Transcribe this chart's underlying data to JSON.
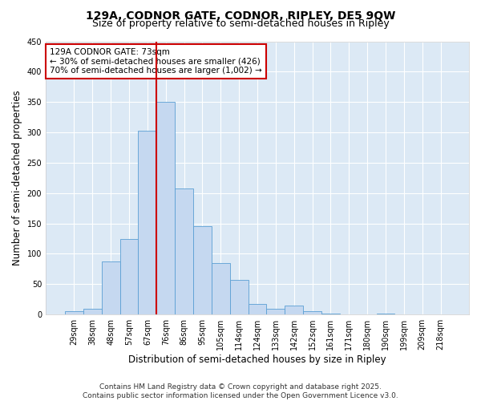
{
  "title_line1": "129A, CODNOR GATE, CODNOR, RIPLEY, DE5 9QW",
  "title_line2": "Size of property relative to semi-detached houses in Ripley",
  "xlabel": "Distribution of semi-detached houses by size in Ripley",
  "ylabel": "Number of semi-detached properties",
  "bar_labels": [
    "29sqm",
    "38sqm",
    "48sqm",
    "57sqm",
    "67sqm",
    "76sqm",
    "86sqm",
    "95sqm",
    "105sqm",
    "114sqm",
    "124sqm",
    "133sqm",
    "142sqm",
    "152sqm",
    "161sqm",
    "171sqm",
    "180sqm",
    "190sqm",
    "199sqm",
    "209sqm",
    "218sqm"
  ],
  "bar_values": [
    5,
    10,
    87,
    125,
    303,
    350,
    208,
    145,
    85,
    57,
    17,
    10,
    15,
    5,
    2,
    0,
    0,
    1,
    0,
    0,
    0
  ],
  "bar_color": "#c5d8f0",
  "bar_edge_color": "#5a9fd4",
  "vline_x": 4.5,
  "vline_color": "#cc0000",
  "annotation_text": "129A CODNOR GATE: 73sqm\n← 30% of semi-detached houses are smaller (426)\n70% of semi-detached houses are larger (1,002) →",
  "annotation_box_color": "#cc0000",
  "ylim": [
    0,
    450
  ],
  "yticks": [
    0,
    50,
    100,
    150,
    200,
    250,
    300,
    350,
    400,
    450
  ],
  "fig_bg_color": "#ffffff",
  "plot_bg_color": "#dce9f5",
  "grid_color": "#ffffff",
  "footer_line1": "Contains HM Land Registry data © Crown copyright and database right 2025.",
  "footer_line2": "Contains public sector information licensed under the Open Government Licence v3.0.",
  "title_fontsize": 10,
  "subtitle_fontsize": 9,
  "axis_label_fontsize": 8.5,
  "tick_fontsize": 7,
  "footer_fontsize": 6.5,
  "annotation_fontsize": 7.5
}
